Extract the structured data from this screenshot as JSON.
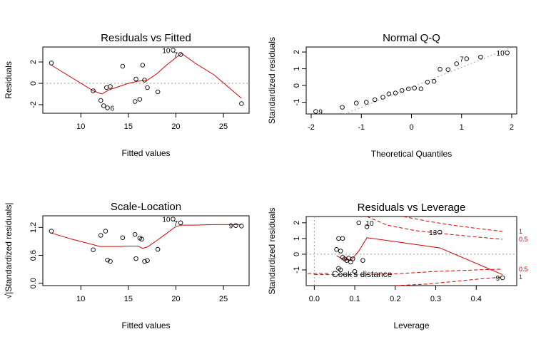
{
  "chart_data": [
    {
      "type": "scatter",
      "title": "Residuals vs Fitted",
      "xlabel": "Fitted values",
      "ylabel": "Residuals",
      "xlim": [
        6,
        27.7
      ],
      "ylim": [
        -2.8,
        3.4
      ],
      "xticks": [
        "10",
        "15",
        "20",
        "25"
      ],
      "xtick_values": [
        10,
        15,
        20,
        25
      ],
      "yticks": [
        "-2",
        "0",
        "2"
      ],
      "ytick_values": [
        -2,
        0,
        2
      ],
      "reference_line": 0,
      "x": [
        6.9,
        11.3,
        12.1,
        12.4,
        12.7,
        12.8,
        13.1,
        14.4,
        15.7,
        15.8,
        16.2,
        16.5,
        16.7,
        17.0,
        18.1,
        19.7,
        20.5,
        26.9
      ],
      "y": [
        1.9,
        -0.7,
        -1.6,
        -2.1,
        -0.4,
        -2.3,
        -0.3,
        1.6,
        -1.7,
        0.4,
        -1.5,
        1.7,
        0.3,
        -0.4,
        -0.8,
        3.1,
        2.7,
        -1.9
      ],
      "smooth": {
        "x": [
          6.9,
          11.3,
          12.2,
          13.0,
          14.0,
          15.0,
          16.0,
          17.0,
          18.0,
          19.0,
          20.0,
          20.6,
          22.0,
          24.0,
          26.9
        ],
        "y": [
          1.7,
          -0.7,
          -1.0,
          -0.6,
          -0.3,
          0.0,
          0.2,
          0.3,
          0.9,
          1.7,
          2.4,
          2.8,
          1.9,
          0.8,
          -1.4
        ]
      },
      "point_labels": [
        {
          "text": "10",
          "x": 19.7,
          "y": 3.1
        },
        {
          "text": "7",
          "x": 20.5,
          "y": 2.7
        },
        {
          "text": "6",
          "x": 12.8,
          "y": -2.3
        }
      ]
    },
    {
      "type": "scatter",
      "title": "Normal Q-Q",
      "xlabel": "Theoretical Quantiles",
      "ylabel": "Standardized residuals",
      "xlim": [
        -2.1,
        2.1
      ],
      "ylim": [
        -1.7,
        2.3
      ],
      "xticks": [
        "-2",
        "-1",
        "0",
        "1",
        "2"
      ],
      "xtick_values": [
        -2,
        -1,
        0,
        1,
        2
      ],
      "yticks": [
        "-1",
        "0",
        "1",
        "2"
      ],
      "ytick_values": [
        -1,
        0,
        1,
        2
      ],
      "reference_line": {
        "from": [
          -1.33,
          -1.7
        ],
        "to": [
          2.1,
          2.4
        ]
      },
      "x": [
        -1.91,
        -1.38,
        -1.1,
        -0.9,
        -0.73,
        -0.57,
        -0.45,
        -0.32,
        -0.19,
        -0.06,
        0.06,
        0.19,
        0.32,
        0.45,
        0.57,
        0.73,
        0.9,
        1.1,
        1.38,
        1.91
      ],
      "y": [
        -1.55,
        -1.3,
        -1.05,
        -1.0,
        -0.85,
        -0.7,
        -0.5,
        -0.45,
        -0.3,
        -0.2,
        -0.15,
        -0.2,
        0.2,
        0.25,
        0.97,
        0.95,
        1.3,
        1.6,
        1.7,
        1.95
      ],
      "point_labels": [
        {
          "text": "9",
          "x": -1.91,
          "y": -1.55
        },
        {
          "text": "7",
          "x": 1.1,
          "y": 1.6
        },
        {
          "text": "10",
          "x": 1.91,
          "y": 1.95
        }
      ]
    },
    {
      "type": "scatter",
      "title": "Scale-Location",
      "xlabel": "Fitted values",
      "ylabel": "√|Standardized residuals|",
      "xlim": [
        6,
        27.7
      ],
      "ylim": [
        -0.05,
        1.45
      ],
      "xticks": [
        "10",
        "15",
        "20",
        "25"
      ],
      "xtick_values": [
        10,
        15,
        20,
        25
      ],
      "yticks": [
        "0.0",
        "0.6",
        "1.2"
      ],
      "ytick_values": [
        0.0,
        0.6,
        1.2
      ],
      "x": [
        6.9,
        11.3,
        12.1,
        12.6,
        12.8,
        13.1,
        14.4,
        15.7,
        15.8,
        16.2,
        16.4,
        16.7,
        17.0,
        18.1,
        19.7,
        20.5,
        26.3,
        26.9
      ],
      "y": [
        1.12,
        0.72,
        1.03,
        1.12,
        0.5,
        0.47,
        0.98,
        1.05,
        0.53,
        0.97,
        0.95,
        0.47,
        0.49,
        0.73,
        1.38,
        1.3,
        1.24,
        1.23
      ],
      "smooth": {
        "x": [
          6.9,
          9.0,
          11.3,
          12.0,
          13.0,
          14.0,
          15.0,
          16.0,
          16.5,
          17.0,
          18.0,
          19.0,
          20.0,
          20.6,
          22.0,
          24.0,
          26.9
        ],
        "y": [
          1.08,
          0.95,
          0.83,
          0.79,
          0.79,
          0.79,
          0.8,
          0.8,
          0.75,
          0.78,
          0.92,
          1.07,
          1.22,
          1.25,
          1.25,
          1.26,
          1.26
        ]
      },
      "point_labels": [
        {
          "text": "10",
          "x": 19.7,
          "y": 1.38
        },
        {
          "text": "7",
          "x": 20.5,
          "y": 1.3
        },
        {
          "text": "9",
          "x": 26.3,
          "y": 1.24
        }
      ]
    },
    {
      "type": "scatter",
      "title": "Residuals vs Leverage",
      "xlabel": "Leverage",
      "ylabel": "Standardized residuals",
      "xlim": [
        -0.02,
        0.5
      ],
      "ylim": [
        -2.0,
        2.4
      ],
      "xticks": [
        "0.0",
        "0.1",
        "0.2",
        "0.3",
        "0.4"
      ],
      "xtick_values": [
        0.0,
        0.1,
        0.2,
        0.3,
        0.4
      ],
      "yticks": [
        "-1",
        "0",
        "1",
        "2"
      ],
      "ytick_values": [
        -1,
        0,
        1,
        2
      ],
      "reference_line": 0,
      "x": [
        0.055,
        0.06,
        0.06,
        0.065,
        0.065,
        0.07,
        0.07,
        0.075,
        0.08,
        0.085,
        0.09,
        0.095,
        0.1,
        0.11,
        0.12,
        0.13,
        0.31,
        0.465
      ],
      "y": [
        0.3,
        1.0,
        -0.9,
        0.2,
        -1.0,
        1.0,
        -0.2,
        -0.3,
        -0.4,
        -0.25,
        -0.5,
        -0.3,
        -1.1,
        2.0,
        -0.4,
        1.75,
        1.4,
        -1.5
      ],
      "smooth": {
        "x": [
          0.055,
          0.07,
          0.09,
          0.11,
          0.13,
          0.2,
          0.31,
          0.465
        ],
        "y": [
          -0.1,
          -0.3,
          -0.4,
          0.2,
          1.05,
          0.8,
          0.4,
          -1.3
        ]
      },
      "cooks_distance": {
        "legend": "Cook's distance",
        "levels": [
          "1",
          "0.5",
          "0.5",
          "1"
        ],
        "level_values": [
          1,
          0.5,
          -0.5,
          -1
        ],
        "curves": [
          {
            "x": [
              0.22,
              0.28,
              0.34,
              0.4,
              0.465
            ],
            "y": [
              2.4,
              2.1,
              1.85,
              1.65,
              1.45
            ]
          },
          {
            "x": [
              0.13,
              0.18,
              0.25,
              0.32,
              0.4,
              0.465
            ],
            "y": [
              2.4,
              1.85,
              1.5,
              1.3,
              1.1,
              0.95
            ]
          },
          {
            "x": [
              0.0,
              0.06,
              0.12,
              0.2,
              0.3,
              0.4,
              0.465
            ],
            "y": [
              -1.3,
              -1.3,
              -1.3,
              -1.25,
              -1.1,
              -1.0,
              -0.95
            ]
          },
          {
            "x": [
              0.2,
              0.28,
              0.34,
              0.4,
              0.465
            ],
            "y": [
              -2.0,
              -1.9,
              -1.75,
              -1.6,
              -1.45
            ]
          }
        ]
      },
      "point_labels": [
        {
          "text": "10",
          "x": 0.12,
          "y": 2.0
        },
        {
          "text": "13",
          "x": 0.31,
          "y": 1.4
        },
        {
          "text": "9",
          "x": 0.465,
          "y": -1.5
        }
      ]
    }
  ],
  "colors": {
    "points": "#000000",
    "smooth": "#d00000",
    "reference": "#9a9a9a",
    "axes": "#000000"
  }
}
